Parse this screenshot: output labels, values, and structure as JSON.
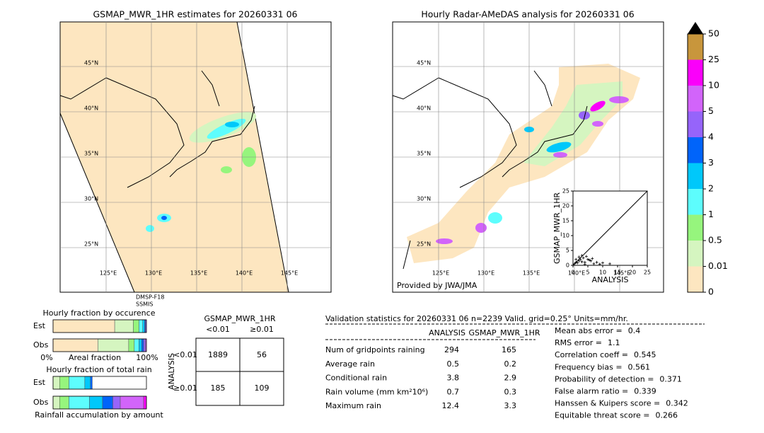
{
  "map1": {
    "title": "GSMAP_MWR_1HR estimates for 20260331 06",
    "lat_labels": [
      "45°N",
      "40°N",
      "35°N",
      "30°N",
      "25°N"
    ],
    "lon_labels": [
      "125°E",
      "130°E",
      "135°E",
      "140°E",
      "145°E"
    ],
    "satellite": [
      "DMSP-F18",
      "SSMIS"
    ]
  },
  "map2": {
    "title": "Hourly Radar-AMeDAS analysis for 20260331 06",
    "lat_labels": [
      "45°N",
      "40°N",
      "35°N",
      "30°N",
      "25°N"
    ],
    "lon_labels": [
      "125°E",
      "130°E",
      "135°E",
      "140°E",
      "145°E"
    ],
    "credit": "Provided by JWA/JMA"
  },
  "colorbar": {
    "ticks": [
      0,
      0.01,
      0.5,
      1,
      2,
      3,
      4,
      5,
      10,
      25,
      50
    ],
    "colors": [
      "#fde6c0",
      "#d5f5c0",
      "#96f57d",
      "#5dfdfd",
      "#00c8fa",
      "#0064fa",
      "#9664fa",
      "#d264fa",
      "#fa00fa",
      "#c8963c"
    ]
  },
  "chart_data": {
    "type": "scatter",
    "xlabel": "ANALYSIS",
    "ylabel": "GSMAP_MWR_1HR",
    "xlim": [
      0,
      25
    ],
    "ylim": [
      0,
      25
    ],
    "xticks": [
      0,
      5,
      10,
      15,
      20,
      25
    ],
    "yticks": [
      0,
      5,
      10,
      15,
      20,
      25
    ],
    "x": [
      0.5,
      1,
      1.5,
      2,
      2.5,
      3,
      3.5,
      4,
      4.5,
      5,
      6,
      7,
      8,
      9,
      10,
      12.4,
      3,
      2,
      1,
      4,
      5.5,
      6.5
    ],
    "y": [
      0.5,
      1,
      0.8,
      1.5,
      2,
      1.2,
      2.5,
      1,
      3,
      2,
      1.5,
      0.5,
      1,
      0.4,
      0.8,
      0.5,
      3.3,
      2.8,
      2,
      0.3,
      1.8,
      2.3
    ]
  },
  "occurrence": {
    "title": "Hourly fraction by occurence",
    "rows": [
      "Est",
      "Obs"
    ],
    "xlabels": [
      "0%",
      "Areal fraction",
      "100%"
    ],
    "segments": [
      {
        "color": "#fde6c0",
        "values": [
          0.66,
          0.48
        ]
      },
      {
        "color": "#d5f5c0",
        "values": [
          0.2,
          0.33
        ]
      },
      {
        "color": "#96f57d",
        "values": [
          0.06,
          0.06
        ]
      },
      {
        "color": "#5dfdfd",
        "values": [
          0.04,
          0.05
        ]
      },
      {
        "color": "#00c8fa",
        "values": [
          0.02,
          0.03
        ]
      },
      {
        "color": "#0064fa",
        "values": [
          0.01,
          0.02
        ]
      },
      {
        "color": "#9664fa",
        "values": [
          0.01,
          0.02
        ]
      },
      {
        "color": "#d264fa",
        "values": [
          0,
          0.01
        ]
      }
    ]
  },
  "total_rain": {
    "title": "Hourly fraction of total rain",
    "rows": [
      "Est",
      "Obs"
    ],
    "xlabel": "Rainfall accumulation by amount",
    "segments": [
      {
        "color": "#d5f5c0",
        "values": [
          0.07,
          0.07
        ]
      },
      {
        "color": "#96f57d",
        "values": [
          0.1,
          0.1
        ]
      },
      {
        "color": "#5dfdfd",
        "values": [
          0.17,
          0.22
        ]
      },
      {
        "color": "#00c8fa",
        "values": [
          0.06,
          0.14
        ]
      },
      {
        "color": "#0064fa",
        "values": [
          0.02,
          0.11
        ]
      },
      {
        "color": "#9664fa",
        "values": [
          0,
          0.08
        ]
      },
      {
        "color": "#d264fa",
        "values": [
          0,
          0.25
        ]
      },
      {
        "color": "#fa00fa",
        "values": [
          0,
          0.03
        ]
      }
    ]
  },
  "contingency": {
    "title": "GSMAP_MWR_1HR",
    "columns": [
      "<0.01",
      "≥0.01"
    ],
    "row_title": "ANALYSIS",
    "rows": [
      "<0.01",
      "≥0.01"
    ],
    "cells": [
      [
        1889,
        56
      ],
      [
        185,
        109
      ]
    ]
  },
  "validation": {
    "title": "Validation statistics for 20260331 06  n=2239 Valid. grid=0.25° Units=mm/hr.",
    "columns": [
      "ANALYSIS",
      "GSMAP_MWR_1HR"
    ],
    "rows": [
      [
        "Num of gridpoints raining",
        294,
        165
      ],
      [
        "Average rain",
        0.5,
        0.2
      ],
      [
        "Conditional rain",
        3.8,
        2.9
      ],
      [
        "Rain volume (mm km²10⁶)",
        0.7,
        0.3
      ],
      [
        "Maximum rain",
        12.4,
        3.3
      ]
    ],
    "scores": [
      [
        "Mean abs error =",
        0.4
      ],
      [
        "RMS error =",
        1.1
      ],
      [
        "Correlation coeff =",
        0.545
      ],
      [
        "Frequency bias =",
        0.561
      ],
      [
        "Probability of detection =",
        0.371
      ],
      [
        "False alarm ratio =",
        0.339
      ],
      [
        "Hanssen & Kuipers score =",
        0.342
      ],
      [
        "Equitable threat score =",
        0.266
      ]
    ]
  }
}
